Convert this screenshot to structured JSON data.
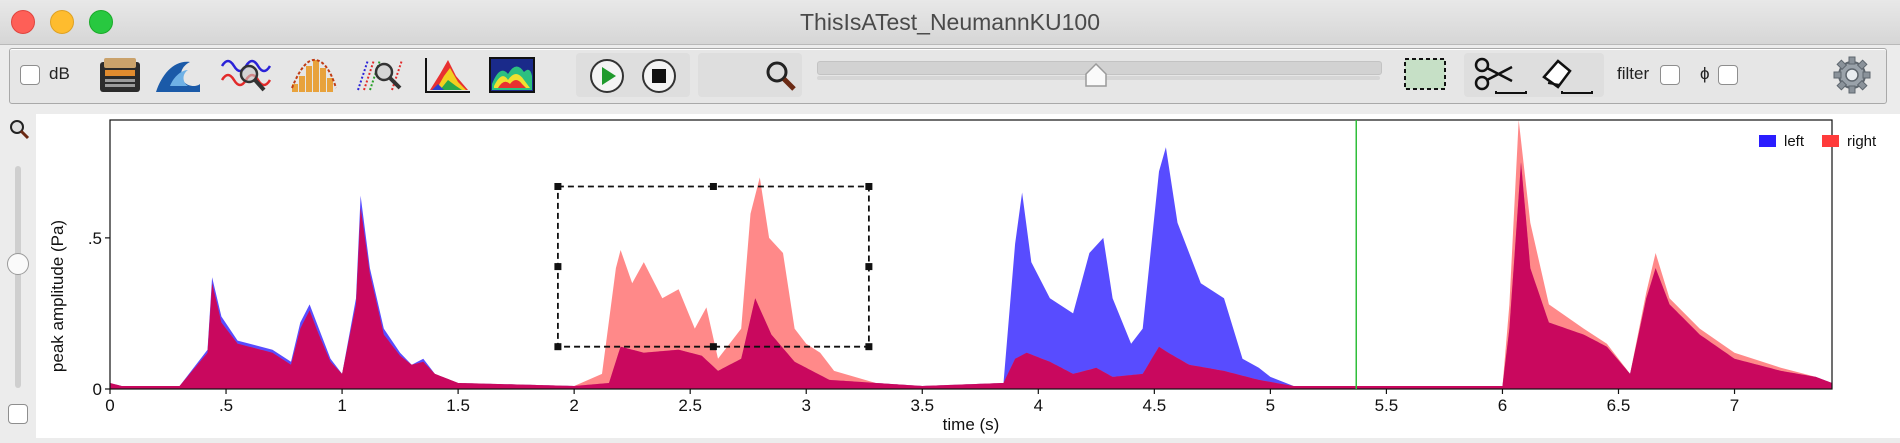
{
  "window": {
    "title": "ThisIsATest_NeumannKU100"
  },
  "toolbar": {
    "db_label": "dB",
    "filter_label": "filter",
    "phi_label": "ϕ",
    "icons": [
      "calculator-icon",
      "wave-icon",
      "waveform-zoom-icon",
      "histogram-icon",
      "spectrum-zoom-icon",
      "3d-surface-icon",
      "spectrogram-icon",
      "play-icon",
      "stop-icon",
      "zoom-icon",
      "selection-rect-icon",
      "scissors-icon",
      "eraser-icon",
      "settings-gear-icon"
    ],
    "slider_level": 0.49,
    "colors": {
      "play": "#1f9a2c",
      "selection_fill": "#c6e0c6"
    }
  },
  "chart_data": {
    "type": "area",
    "xlabel": "time (s)",
    "ylabel": "peak amplitude (Pa)",
    "xlim": [
      0,
      7.42
    ],
    "ylim": [
      0,
      0.89
    ],
    "xticks": [
      0,
      0.5,
      1,
      1.5,
      2,
      2.5,
      3,
      3.5,
      4,
      4.5,
      5,
      5.5,
      6,
      6.5,
      7
    ],
    "xtick_labels": [
      "0",
      ".5",
      "1",
      "1.5",
      "2",
      "2.5",
      "3",
      "3.5",
      "4",
      "4.5",
      "5",
      "5.5",
      "6",
      "6.5",
      "7"
    ],
    "yticks": [
      0,
      0.5
    ],
    "ytick_labels": [
      "0",
      ".5"
    ],
    "legend": {
      "position": "top-right",
      "entries": [
        {
          "name": "left",
          "color": "#2a1dff"
        },
        {
          "name": "right",
          "color": "#ff3b3b"
        }
      ]
    },
    "cursor_time": 5.37,
    "selection": {
      "t_start": 1.93,
      "t_end": 3.27,
      "a_low": 0.14,
      "a_high": 0.67
    },
    "series": [
      {
        "name": "left",
        "color": "#3b2dff",
        "points": [
          [
            0,
            0.02
          ],
          [
            0.05,
            0.01
          ],
          [
            0.3,
            0.01
          ],
          [
            0.42,
            0.13
          ],
          [
            0.44,
            0.37
          ],
          [
            0.48,
            0.24
          ],
          [
            0.55,
            0.16
          ],
          [
            0.7,
            0.13
          ],
          [
            0.78,
            0.09
          ],
          [
            0.82,
            0.22
          ],
          [
            0.86,
            0.28
          ],
          [
            0.9,
            0.2
          ],
          [
            0.95,
            0.1
          ],
          [
            1.0,
            0.05
          ],
          [
            1.06,
            0.3
          ],
          [
            1.08,
            0.64
          ],
          [
            1.12,
            0.4
          ],
          [
            1.18,
            0.2
          ],
          [
            1.25,
            0.12
          ],
          [
            1.3,
            0.08
          ],
          [
            1.35,
            0.1
          ],
          [
            1.4,
            0.05
          ],
          [
            1.5,
            0.02
          ],
          [
            2.0,
            0.01
          ],
          [
            2.15,
            0.02
          ],
          [
            2.2,
            0.14
          ],
          [
            2.3,
            0.12
          ],
          [
            2.45,
            0.13
          ],
          [
            2.55,
            0.11
          ],
          [
            2.62,
            0.06
          ],
          [
            2.72,
            0.1
          ],
          [
            2.78,
            0.3
          ],
          [
            2.85,
            0.18
          ],
          [
            2.95,
            0.09
          ],
          [
            3.1,
            0.03
          ],
          [
            3.5,
            0.01
          ],
          [
            3.85,
            0.02
          ],
          [
            3.9,
            0.48
          ],
          [
            3.93,
            0.65
          ],
          [
            3.97,
            0.42
          ],
          [
            4.05,
            0.3
          ],
          [
            4.15,
            0.25
          ],
          [
            4.22,
            0.45
          ],
          [
            4.28,
            0.5
          ],
          [
            4.32,
            0.3
          ],
          [
            4.4,
            0.15
          ],
          [
            4.45,
            0.2
          ],
          [
            4.52,
            0.72
          ],
          [
            4.55,
            0.8
          ],
          [
            4.6,
            0.55
          ],
          [
            4.7,
            0.35
          ],
          [
            4.8,
            0.3
          ],
          [
            4.88,
            0.1
          ],
          [
            4.95,
            0.07
          ],
          [
            5.0,
            0.04
          ],
          [
            5.1,
            0.01
          ],
          [
            6.0,
            0.01
          ],
          [
            6.03,
            0.2
          ],
          [
            6.08,
            0.75
          ],
          [
            6.12,
            0.4
          ],
          [
            6.2,
            0.22
          ],
          [
            6.35,
            0.18
          ],
          [
            6.45,
            0.14
          ],
          [
            6.55,
            0.05
          ],
          [
            6.62,
            0.3
          ],
          [
            6.66,
            0.4
          ],
          [
            6.72,
            0.28
          ],
          [
            6.85,
            0.18
          ],
          [
            7.0,
            0.1
          ],
          [
            7.2,
            0.06
          ],
          [
            7.35,
            0.04
          ],
          [
            7.42,
            0.02
          ]
        ]
      },
      {
        "name": "right",
        "color": "#ff5c5c",
        "points": [
          [
            0,
            0.02
          ],
          [
            0.05,
            0.01
          ],
          [
            0.3,
            0.01
          ],
          [
            0.42,
            0.12
          ],
          [
            0.44,
            0.35
          ],
          [
            0.48,
            0.22
          ],
          [
            0.55,
            0.15
          ],
          [
            0.7,
            0.12
          ],
          [
            0.78,
            0.08
          ],
          [
            0.82,
            0.2
          ],
          [
            0.86,
            0.26
          ],
          [
            0.9,
            0.18
          ],
          [
            0.95,
            0.09
          ],
          [
            1.0,
            0.05
          ],
          [
            1.06,
            0.28
          ],
          [
            1.08,
            0.6
          ],
          [
            1.12,
            0.38
          ],
          [
            1.18,
            0.18
          ],
          [
            1.25,
            0.11
          ],
          [
            1.3,
            0.08
          ],
          [
            1.35,
            0.09
          ],
          [
            1.4,
            0.05
          ],
          [
            1.5,
            0.02
          ],
          [
            2.0,
            0.01
          ],
          [
            2.12,
            0.05
          ],
          [
            2.18,
            0.4
          ],
          [
            2.2,
            0.46
          ],
          [
            2.25,
            0.35
          ],
          [
            2.3,
            0.42
          ],
          [
            2.38,
            0.3
          ],
          [
            2.45,
            0.33
          ],
          [
            2.52,
            0.2
          ],
          [
            2.57,
            0.27
          ],
          [
            2.62,
            0.1
          ],
          [
            2.72,
            0.2
          ],
          [
            2.76,
            0.58
          ],
          [
            2.8,
            0.7
          ],
          [
            2.84,
            0.5
          ],
          [
            2.9,
            0.45
          ],
          [
            2.95,
            0.2
          ],
          [
            3.0,
            0.15
          ],
          [
            3.06,
            0.12
          ],
          [
            3.12,
            0.06
          ],
          [
            3.3,
            0.02
          ],
          [
            3.5,
            0.01
          ],
          [
            3.85,
            0.02
          ],
          [
            3.9,
            0.1
          ],
          [
            3.95,
            0.12
          ],
          [
            4.05,
            0.09
          ],
          [
            4.15,
            0.05
          ],
          [
            4.25,
            0.07
          ],
          [
            4.32,
            0.04
          ],
          [
            4.45,
            0.05
          ],
          [
            4.52,
            0.14
          ],
          [
            4.56,
            0.12
          ],
          [
            4.65,
            0.08
          ],
          [
            4.8,
            0.06
          ],
          [
            4.95,
            0.03
          ],
          [
            5.1,
            0.01
          ],
          [
            6.0,
            0.01
          ],
          [
            6.03,
            0.28
          ],
          [
            6.07,
            0.89
          ],
          [
            6.12,
            0.55
          ],
          [
            6.2,
            0.28
          ],
          [
            6.35,
            0.2
          ],
          [
            6.45,
            0.15
          ],
          [
            6.55,
            0.05
          ],
          [
            6.62,
            0.32
          ],
          [
            6.66,
            0.45
          ],
          [
            6.72,
            0.3
          ],
          [
            6.85,
            0.2
          ],
          [
            7.0,
            0.12
          ],
          [
            7.2,
            0.07
          ],
          [
            7.35,
            0.04
          ],
          [
            7.42,
            0.02
          ]
        ]
      }
    ]
  }
}
